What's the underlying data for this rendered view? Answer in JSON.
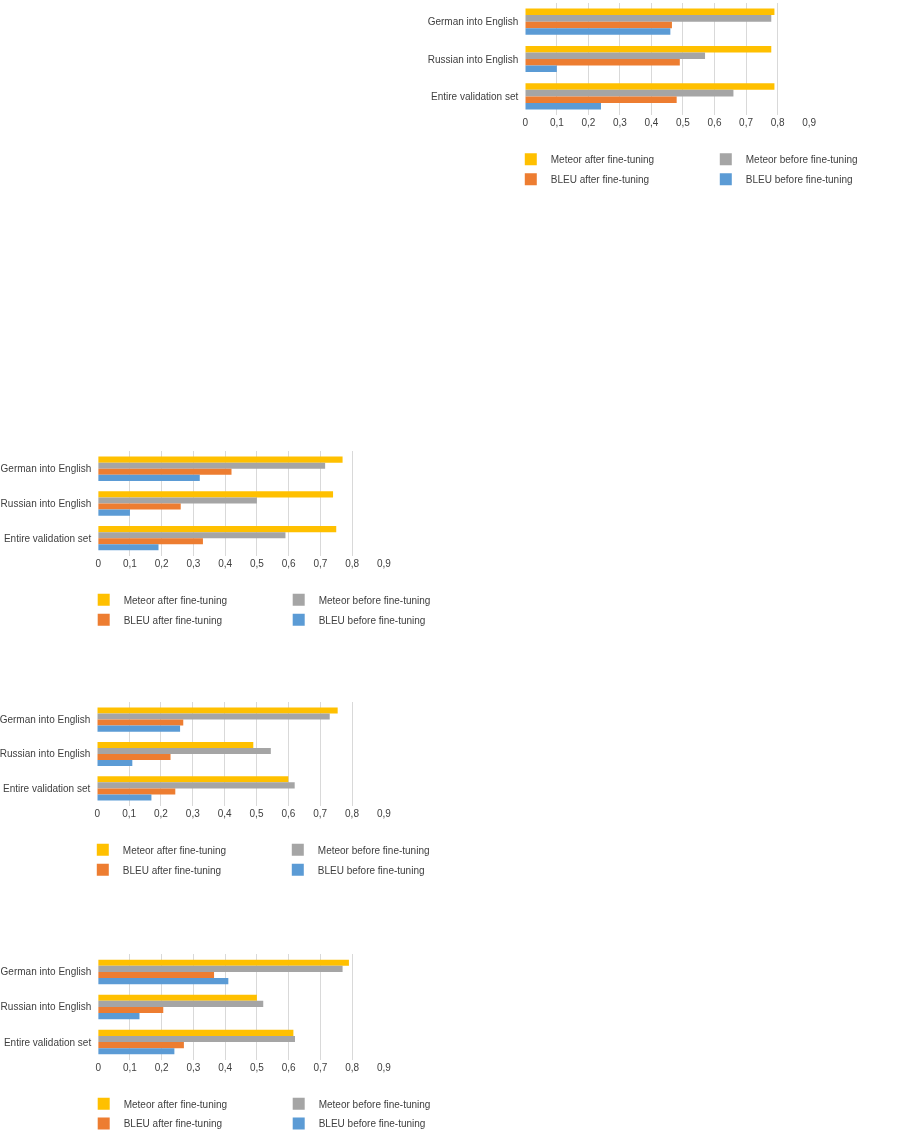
{
  "chart_data": [
    {
      "type": "bar",
      "orientation": "horizontal",
      "categories": [
        "German into English",
        "Russian into English",
        "Entire validation set"
      ],
      "series": [
        {
          "name": "Meteor after fine-tuning",
          "color": "#ffc000",
          "values": [
            0.79,
            0.78,
            0.79
          ]
        },
        {
          "name": "Meteor before fine-tuning",
          "color": "#a5a5a5",
          "values": [
            0.78,
            0.57,
            0.66
          ]
        },
        {
          "name": "BLEU after fine-tuning",
          "color": "#ed7d31",
          "values": [
            0.465,
            0.49,
            0.48
          ]
        },
        {
          "name": "BLEU before fine-tuning",
          "color": "#5b9bd5",
          "values": [
            0.46,
            0.1,
            0.24
          ]
        }
      ],
      "xlim": [
        0,
        0.9
      ],
      "xticks": [
        0,
        {
          "value": 0.1,
          "label": "0,1"
        },
        {
          "value": 0.2,
          "label": "0,2"
        },
        {
          "value": 0.3,
          "label": "0,3"
        },
        {
          "value": 0.4,
          "label": "0,4"
        },
        {
          "value": 0.5,
          "label": "0,5"
        },
        {
          "value": 0.6,
          "label": "0,6"
        },
        {
          "value": 0.7,
          "label": "0,7"
        },
        {
          "value": 0.8,
          "label": "0,8"
        },
        {
          "value": 0.9,
          "label": "0,9"
        }
      ],
      "grid": "x",
      "legend": "bottom"
    },
    {
      "type": "bar",
      "orientation": "horizontal",
      "categories": [
        "German into English",
        "Russian into English",
        "Entire validation set"
      ],
      "series": [
        {
          "name": "Meteor after fine-tuning",
          "color": "#ffc000",
          "values": [
            0.77,
            0.74,
            0.75
          ]
        },
        {
          "name": "Meteor before fine-tuning",
          "color": "#a5a5a5",
          "values": [
            0.715,
            0.5,
            0.59
          ]
        },
        {
          "name": "BLEU after fine-tuning",
          "color": "#ed7d31",
          "values": [
            0.42,
            0.26,
            0.33
          ]
        },
        {
          "name": "BLEU before fine-tuning",
          "color": "#5b9bd5",
          "values": [
            0.32,
            0.1,
            0.19
          ]
        }
      ],
      "xlim": [
        0,
        0.9
      ],
      "xticks": [
        0,
        {
          "value": 0.1,
          "label": "0,1"
        },
        {
          "value": 0.2,
          "label": "0,2"
        },
        {
          "value": 0.3,
          "label": "0,3"
        },
        {
          "value": 0.4,
          "label": "0,4"
        },
        {
          "value": 0.5,
          "label": "0,5"
        },
        {
          "value": 0.6,
          "label": "0,6"
        },
        {
          "value": 0.7,
          "label": "0,7"
        },
        {
          "value": 0.8,
          "label": "0,8"
        },
        {
          "value": 0.9,
          "label": "0,9"
        }
      ],
      "grid": "x",
      "legend": "bottom"
    },
    {
      "type": "bar",
      "orientation": "horizontal",
      "categories": [
        "German into English",
        "Russian into English",
        "Entire validation set"
      ],
      "series": [
        {
          "name": "Meteor after fine-tuning",
          "color": "#ffc000",
          "values": [
            0.755,
            0.49,
            0.6
          ]
        },
        {
          "name": "Meteor before fine-tuning",
          "color": "#a5a5a5",
          "values": [
            0.73,
            0.545,
            0.62
          ]
        },
        {
          "name": "BLEU after fine-tuning",
          "color": "#ed7d31",
          "values": [
            0.27,
            0.23,
            0.245
          ]
        },
        {
          "name": "BLEU before fine-tuning",
          "color": "#5b9bd5",
          "values": [
            0.26,
            0.11,
            0.17
          ]
        }
      ],
      "xlim": [
        0,
        0.9
      ],
      "xticks": [
        0,
        {
          "value": 0.1,
          "label": "0,1"
        },
        {
          "value": 0.2,
          "label": "0,2"
        },
        {
          "value": 0.3,
          "label": "0,3"
        },
        {
          "value": 0.4,
          "label": "0,4"
        },
        {
          "value": 0.5,
          "label": "0,5"
        },
        {
          "value": 0.6,
          "label": "0,6"
        },
        {
          "value": 0.7,
          "label": "0,7"
        },
        {
          "value": 0.8,
          "label": "0,8"
        },
        {
          "value": 0.9,
          "label": "0,9"
        }
      ],
      "grid": "x",
      "legend": "bottom"
    },
    {
      "type": "bar",
      "orientation": "horizontal",
      "categories": [
        "German into English",
        "Russian into English",
        "Entire validation set"
      ],
      "series": [
        {
          "name": "Meteor after fine-tuning",
          "color": "#ffc000",
          "values": [
            0.79,
            0.5,
            0.615
          ]
        },
        {
          "name": "Meteor before fine-tuning",
          "color": "#a5a5a5",
          "values": [
            0.77,
            0.52,
            0.62
          ]
        },
        {
          "name": "BLEU after fine-tuning",
          "color": "#ed7d31",
          "values": [
            0.365,
            0.205,
            0.27
          ]
        },
        {
          "name": "BLEU before fine-tuning",
          "color": "#5b9bd5",
          "values": [
            0.41,
            0.13,
            0.24
          ]
        }
      ],
      "xlim": [
        0,
        0.9
      ],
      "xticks": [
        0,
        {
          "value": 0.1,
          "label": "0,1"
        },
        {
          "value": 0.2,
          "label": "0,2"
        },
        {
          "value": 0.3,
          "label": "0,3"
        },
        {
          "value": 0.4,
          "label": "0,4"
        },
        {
          "value": 0.5,
          "label": "0,5"
        },
        {
          "value": 0.6,
          "label": "0,6"
        },
        {
          "value": 0.7,
          "label": "0,7"
        },
        {
          "value": 0.8,
          "label": "0,8"
        },
        {
          "value": 0.9,
          "label": "0,9"
        }
      ],
      "grid": "x",
      "legend": "bottom"
    }
  ]
}
